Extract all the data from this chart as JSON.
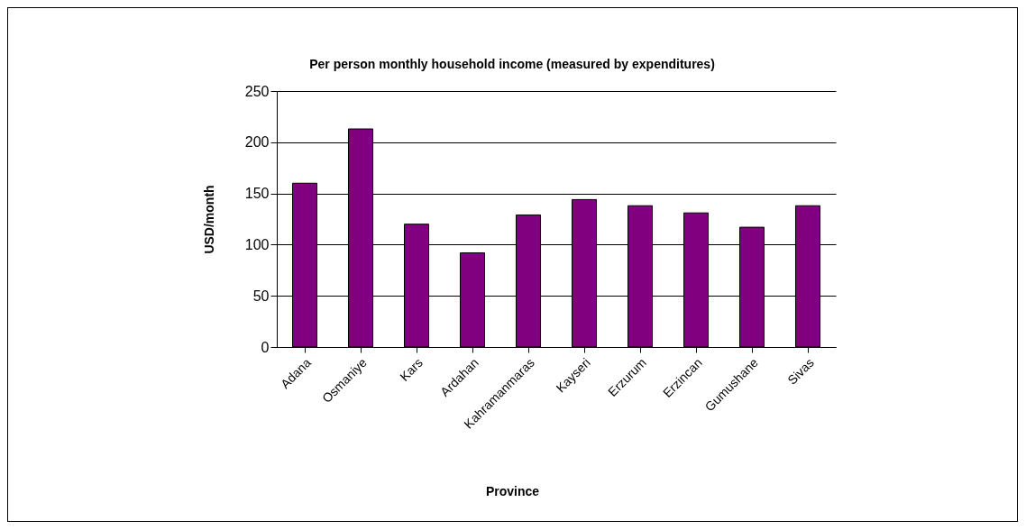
{
  "chart_data": {
    "type": "bar",
    "title": "Per person monthly household income (measured by expenditures)",
    "xlabel": "Province",
    "ylabel": "USD/month",
    "categories": [
      "Adana",
      "Osmaniye",
      "Kars",
      "Ardahan",
      "Kahramanmaras",
      "Kayseri",
      "Erzurum",
      "Erzincan",
      "Gumushane",
      "Sivas"
    ],
    "values": [
      160,
      213,
      120,
      92,
      129,
      144,
      138,
      131,
      117,
      138
    ],
    "color": "#800080",
    "ylim": [
      0,
      250
    ],
    "yticks": [
      0,
      50,
      100,
      150,
      200,
      250
    ],
    "grid": "y"
  }
}
